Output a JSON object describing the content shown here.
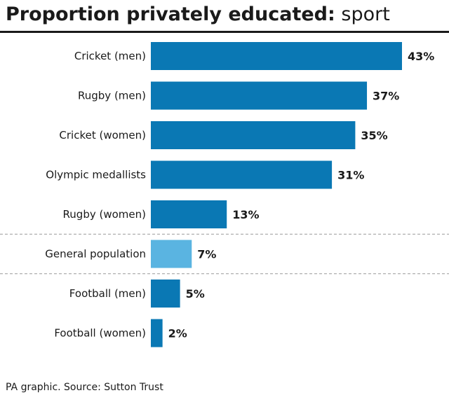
{
  "title_bold": "Proportion privately educated:",
  "title_light": "sport",
  "footer": "PA graphic. Source: Sutton Trust",
  "colors": {
    "bar": "#0a78b4",
    "highlight": "#5ab4e1",
    "divider": "#999999"
  },
  "chart_data": {
    "type": "bar",
    "orientation": "horizontal",
    "title": "Proportion privately educated: sport",
    "categories": [
      "Cricket (men)",
      "Rugby (men)",
      "Cricket (women)",
      "Olympic medallists",
      "Rugby (women)",
      "General population",
      "Football (men)",
      "Football (women)"
    ],
    "values": [
      43,
      37,
      35,
      31,
      13,
      7,
      5,
      2
    ],
    "value_labels": [
      "43%",
      "37%",
      "35%",
      "31%",
      "13%",
      "7%",
      "5%",
      "2%"
    ],
    "highlighted_category": "General population",
    "unit": "%",
    "xlim": [
      0,
      43
    ],
    "grid": false,
    "legend": "none",
    "dividers": "dashed lines above and below General population"
  }
}
